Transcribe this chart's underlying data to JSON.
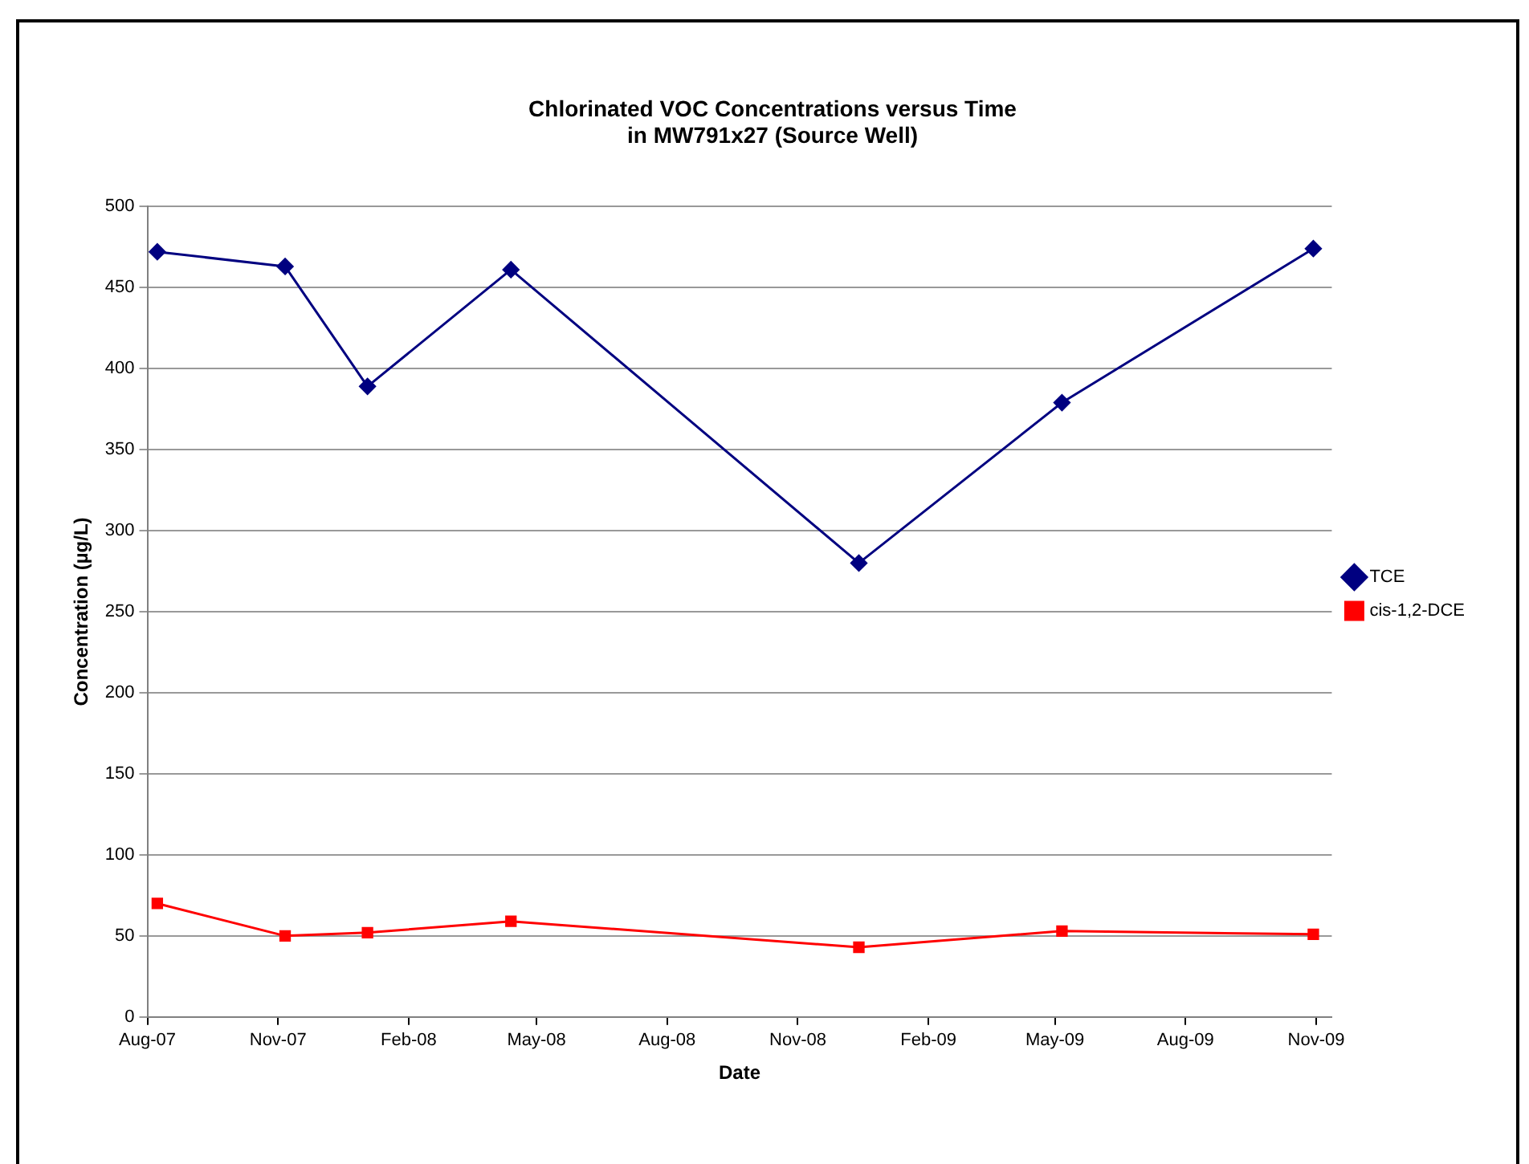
{
  "chart_data": {
    "type": "line",
    "title": [
      "Chlorinated VOC Concentrations versus Time",
      "in MW791x27 (Source Well)"
    ],
    "xlabel": "Date",
    "ylabel": "Concentration (µg/L)",
    "x": [
      "2007-08-08",
      "2007-11-06",
      "2008-01-03",
      "2008-04-13",
      "2008-12-14",
      "2009-05-06",
      "2009-10-30"
    ],
    "series": [
      {
        "name": "TCE",
        "color": "#000080",
        "marker": "diamond",
        "values": [
          472,
          463,
          389,
          461,
          280,
          379,
          474
        ]
      },
      {
        "name": "cis-1,2-DCE",
        "color": "#ff0000",
        "marker": "square",
        "values": [
          70,
          50,
          52,
          59,
          43,
          53,
          51
        ]
      }
    ],
    "xlim": [
      "2007-08-01",
      "2009-11-12"
    ],
    "xticks": [
      {
        "value": "2007-08-01",
        "label": "Aug-07"
      },
      {
        "value": "2007-11-01",
        "label": "Nov-07"
      },
      {
        "value": "2008-02-01",
        "label": "Feb-08"
      },
      {
        "value": "2008-05-01",
        "label": "May-08"
      },
      {
        "value": "2008-08-01",
        "label": "Aug-08"
      },
      {
        "value": "2008-11-01",
        "label": "Nov-08"
      },
      {
        "value": "2009-02-01",
        "label": "Feb-09"
      },
      {
        "value": "2009-05-01",
        "label": "May-09"
      },
      {
        "value": "2009-08-01",
        "label": "Aug-09"
      },
      {
        "value": "2009-11-01",
        "label": "Nov-09"
      }
    ],
    "ylim": [
      0,
      500
    ],
    "yticks": [
      0,
      50,
      100,
      150,
      200,
      250,
      300,
      350,
      400,
      450,
      500
    ],
    "grid": "y",
    "legend": "right",
    "line_style": "solid"
  }
}
